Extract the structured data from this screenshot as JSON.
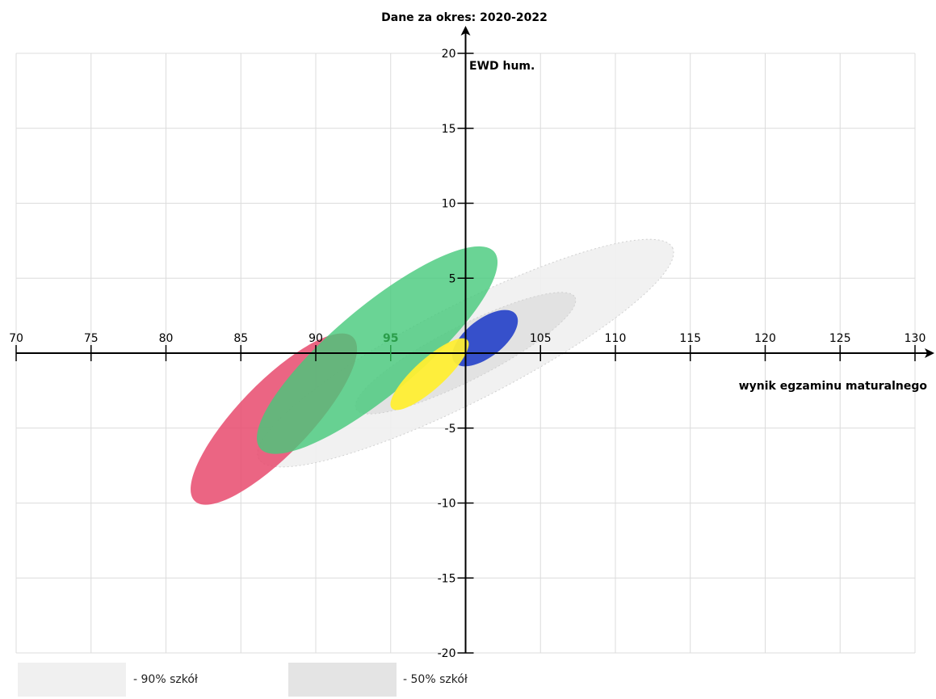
{
  "chart_data": {
    "type": "scatter",
    "title": "Dane za okres: 2020-2022",
    "xlabel": "wynik egzaminu maturalnego",
    "ylabel": "EWD hum.",
    "xlim": [
      70,
      130
    ],
    "ylim": [
      -20,
      20
    ],
    "x_ticks": [
      70,
      75,
      80,
      85,
      90,
      95,
      105,
      110,
      115,
      120,
      125,
      130
    ],
    "highlight_x_tick": 95,
    "y_ticks": [
      20,
      15,
      10,
      5,
      -5,
      -10,
      -15,
      -20
    ],
    "grid": true,
    "axes_cross_at": [
      100,
      0
    ],
    "series": [
      {
        "cx": 100,
        "cy": 0,
        "semi_major": 15.5,
        "semi_minor": 3.2,
        "angle": 27,
        "color": "#f0f0f0",
        "opacity": 0.9
      },
      {
        "cx": 100,
        "cy": 0,
        "semi_major": 8.2,
        "semi_minor": 1.8,
        "angle": 27,
        "color": "#e0e0e0",
        "opacity": 0.9
      },
      {
        "cx": 87.2,
        "cy": -4.4,
        "semi_major": 7.6,
        "semi_minor": 2.4,
        "angle": 46,
        "color": "#e84a6d",
        "opacity": 0.85
      },
      {
        "cx": 94.1,
        "cy": 0.2,
        "semi_major": 10.2,
        "semi_minor": 2.9,
        "angle": 40,
        "color": "#45c97a",
        "opacity": 0.8
      },
      {
        "cx": 101.3,
        "cy": 1.0,
        "semi_major": 2.6,
        "semi_minor": 1.25,
        "angle": 38,
        "color": "#2340c9",
        "opacity": 0.9
      },
      {
        "cx": 97.6,
        "cy": -1.4,
        "semi_major": 3.4,
        "semi_minor": 1.0,
        "angle": 42,
        "color": "#ffee33",
        "opacity": 0.95
      }
    ]
  },
  "legend": [
    {
      "label": "- 90% szkół",
      "color": "#f0f0f0"
    },
    {
      "label": "- 50% szkół",
      "color": "#e4e4e4"
    }
  ]
}
